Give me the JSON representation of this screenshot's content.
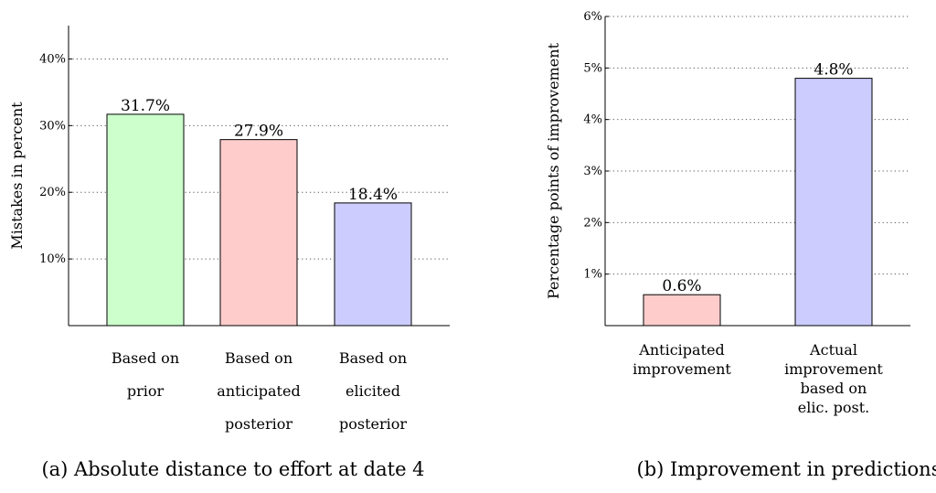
{
  "chart_data": [
    {
      "type": "bar",
      "caption": "(a) Absolute distance to effort at date 4",
      "ylabel": "Mistakes in percent",
      "ylim": [
        0,
        45
      ],
      "yticks": [
        10,
        20,
        30,
        40
      ],
      "ytick_labels": [
        "10%",
        "20%",
        "30%",
        "40%"
      ],
      "grid": "horizontal dotted",
      "categories": [
        [
          "Based on",
          "prior"
        ],
        [
          "Based on",
          "anticipated",
          "posterior"
        ],
        [
          "Based on",
          "elicited",
          "posterior"
        ]
      ],
      "values": [
        31.7,
        27.9,
        18.4
      ],
      "value_labels": [
        "31.7%",
        "27.9%",
        "18.4%"
      ],
      "colors": [
        "#ccffcc",
        "#ffcccc",
        "#ccccff"
      ]
    },
    {
      "type": "bar",
      "caption": "(b) Improvement in predictions",
      "ylabel": "Percentage points of improvement",
      "ylim": [
        0,
        6
      ],
      "yticks": [
        1,
        2,
        3,
        4,
        5,
        6
      ],
      "ytick_labels": [
        "1%",
        "2%",
        "3%",
        "4%",
        "5%",
        "6%"
      ],
      "grid": "horizontal dotted",
      "categories": [
        [
          "Anticipated",
          "improvement"
        ],
        [
          "Actual",
          "improvement",
          "based on",
          "elic. post."
        ]
      ],
      "values": [
        0.6,
        4.8
      ],
      "value_labels": [
        "0.6%",
        "4.8%"
      ],
      "colors": [
        "#ffcccc",
        "#ccccff"
      ]
    }
  ]
}
